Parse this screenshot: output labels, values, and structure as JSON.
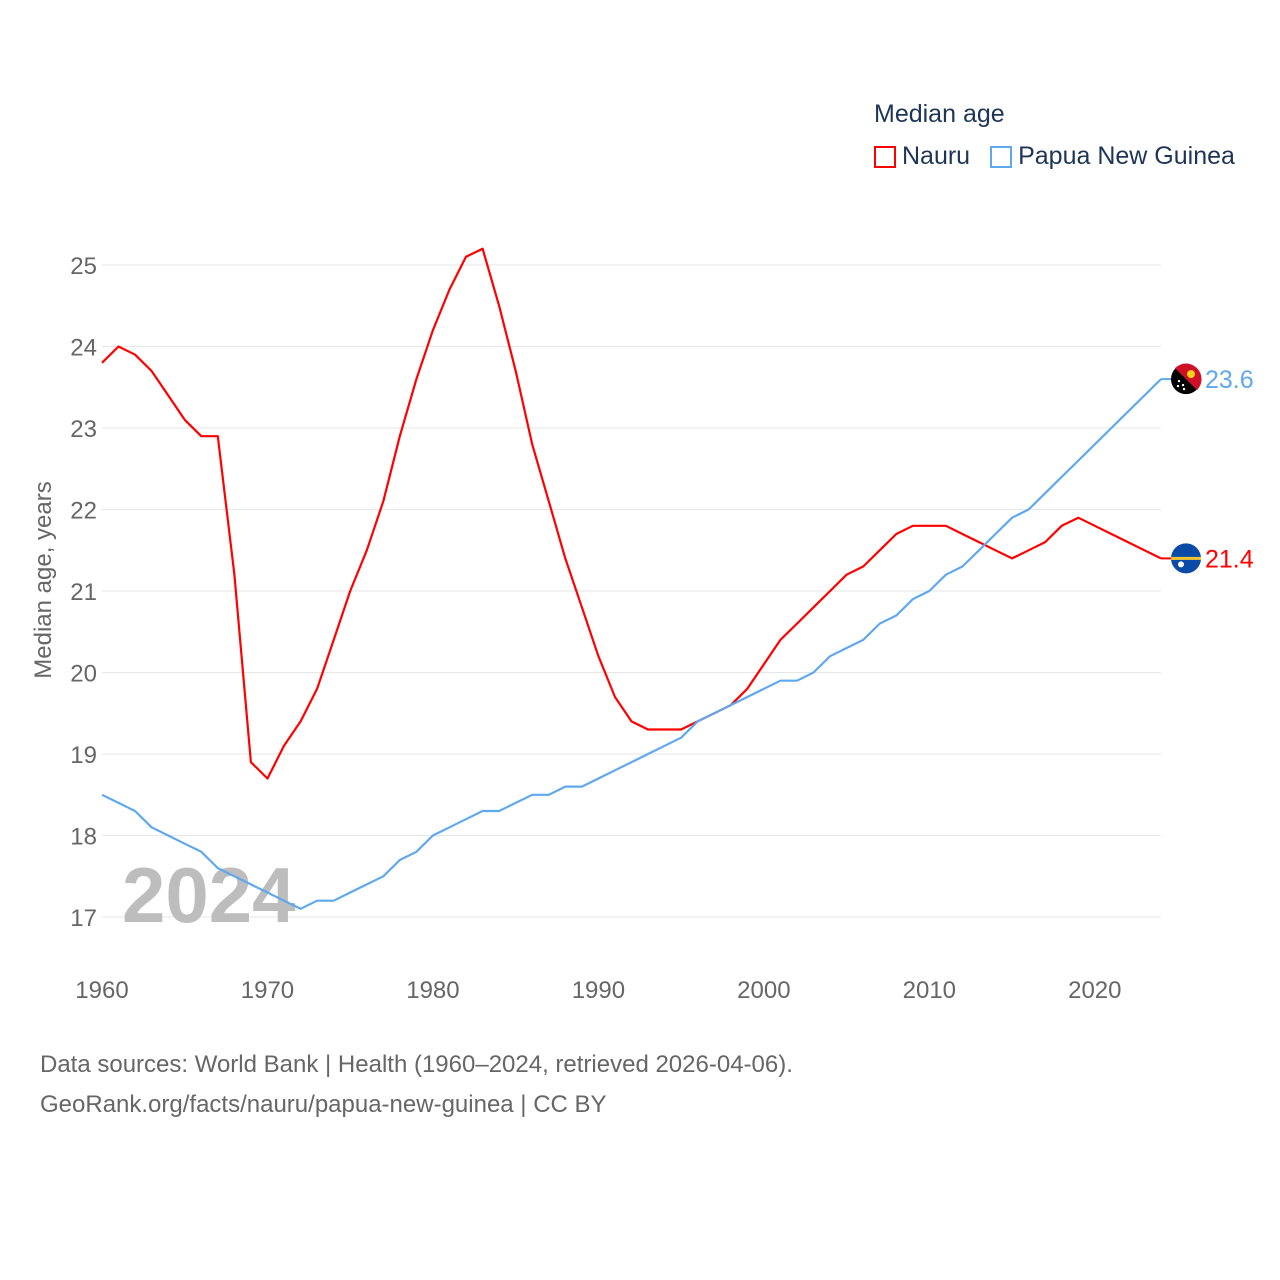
{
  "chart_data": {
    "type": "line",
    "legend_title": "Median age",
    "ylabel": "Median age, years",
    "xlabel": "",
    "xlim": [
      1960,
      2024
    ],
    "ylim": [
      16.5,
      25.5
    ],
    "x_ticks": [
      1960,
      1970,
      1980,
      1990,
      2000,
      2010,
      2020
    ],
    "y_ticks": [
      17,
      18,
      19,
      20,
      21,
      22,
      23,
      24,
      25
    ],
    "grid": true,
    "legend_position": "top-right",
    "year_watermark": "2024",
    "x": [
      1960,
      1961,
      1962,
      1963,
      1964,
      1965,
      1966,
      1967,
      1968,
      1969,
      1970,
      1971,
      1972,
      1973,
      1974,
      1975,
      1976,
      1977,
      1978,
      1979,
      1980,
      1981,
      1982,
      1983,
      1984,
      1985,
      1986,
      1987,
      1988,
      1989,
      1990,
      1991,
      1992,
      1993,
      1994,
      1995,
      1996,
      1997,
      1998,
      1999,
      2000,
      2001,
      2002,
      2003,
      2004,
      2005,
      2006,
      2007,
      2008,
      2009,
      2010,
      2011,
      2012,
      2013,
      2014,
      2015,
      2016,
      2017,
      2018,
      2019,
      2020,
      2021,
      2022,
      2023,
      2024
    ],
    "series": [
      {
        "name": "Nauru",
        "color": "#ff0000",
        "end_label": "21.4",
        "flag": "nauru-flag",
        "values": [
          23.8,
          24.0,
          23.9,
          23.7,
          23.4,
          23.1,
          22.9,
          22.9,
          21.2,
          18.9,
          18.7,
          19.1,
          19.4,
          19.8,
          20.4,
          21.0,
          21.5,
          22.1,
          22.9,
          23.6,
          24.2,
          24.7,
          25.1,
          25.2,
          24.5,
          23.7,
          22.8,
          22.1,
          21.4,
          20.8,
          20.2,
          19.7,
          19.4,
          19.3,
          19.3,
          19.3,
          19.4,
          19.5,
          19.6,
          19.8,
          20.1,
          20.4,
          20.6,
          20.8,
          21.0,
          21.2,
          21.3,
          21.5,
          21.7,
          21.8,
          21.8,
          21.8,
          21.7,
          21.6,
          21.5,
          21.4,
          21.5,
          21.6,
          21.8,
          21.9,
          21.8,
          21.7,
          21.6,
          21.5,
          21.4
        ]
      },
      {
        "name": "Papua New Guinea",
        "color": "#5fa8ee",
        "end_label": "23.6",
        "flag": "png-flag",
        "values": [
          18.5,
          18.4,
          18.3,
          18.1,
          18.0,
          17.9,
          17.8,
          17.6,
          17.5,
          17.4,
          17.3,
          17.2,
          17.1,
          17.2,
          17.2,
          17.3,
          17.4,
          17.5,
          17.7,
          17.8,
          18.0,
          18.1,
          18.2,
          18.3,
          18.3,
          18.4,
          18.5,
          18.5,
          18.6,
          18.6,
          18.7,
          18.8,
          18.9,
          19.0,
          19.1,
          19.2,
          19.4,
          19.5,
          19.6,
          19.7,
          19.8,
          19.9,
          19.9,
          20.0,
          20.2,
          20.3,
          20.4,
          20.6,
          20.7,
          20.9,
          21.0,
          21.2,
          21.3,
          21.5,
          21.7,
          21.9,
          22.0,
          22.2,
          22.4,
          22.6,
          22.8,
          23.0,
          23.2,
          23.4,
          23.6
        ]
      }
    ]
  },
  "footer": {
    "line1": "Data sources: World Bank | Health (1960–2024, retrieved 2026-04-06).",
    "line2": "GeoRank.org/facts/nauru/papua-new-guinea | CC BY"
  }
}
